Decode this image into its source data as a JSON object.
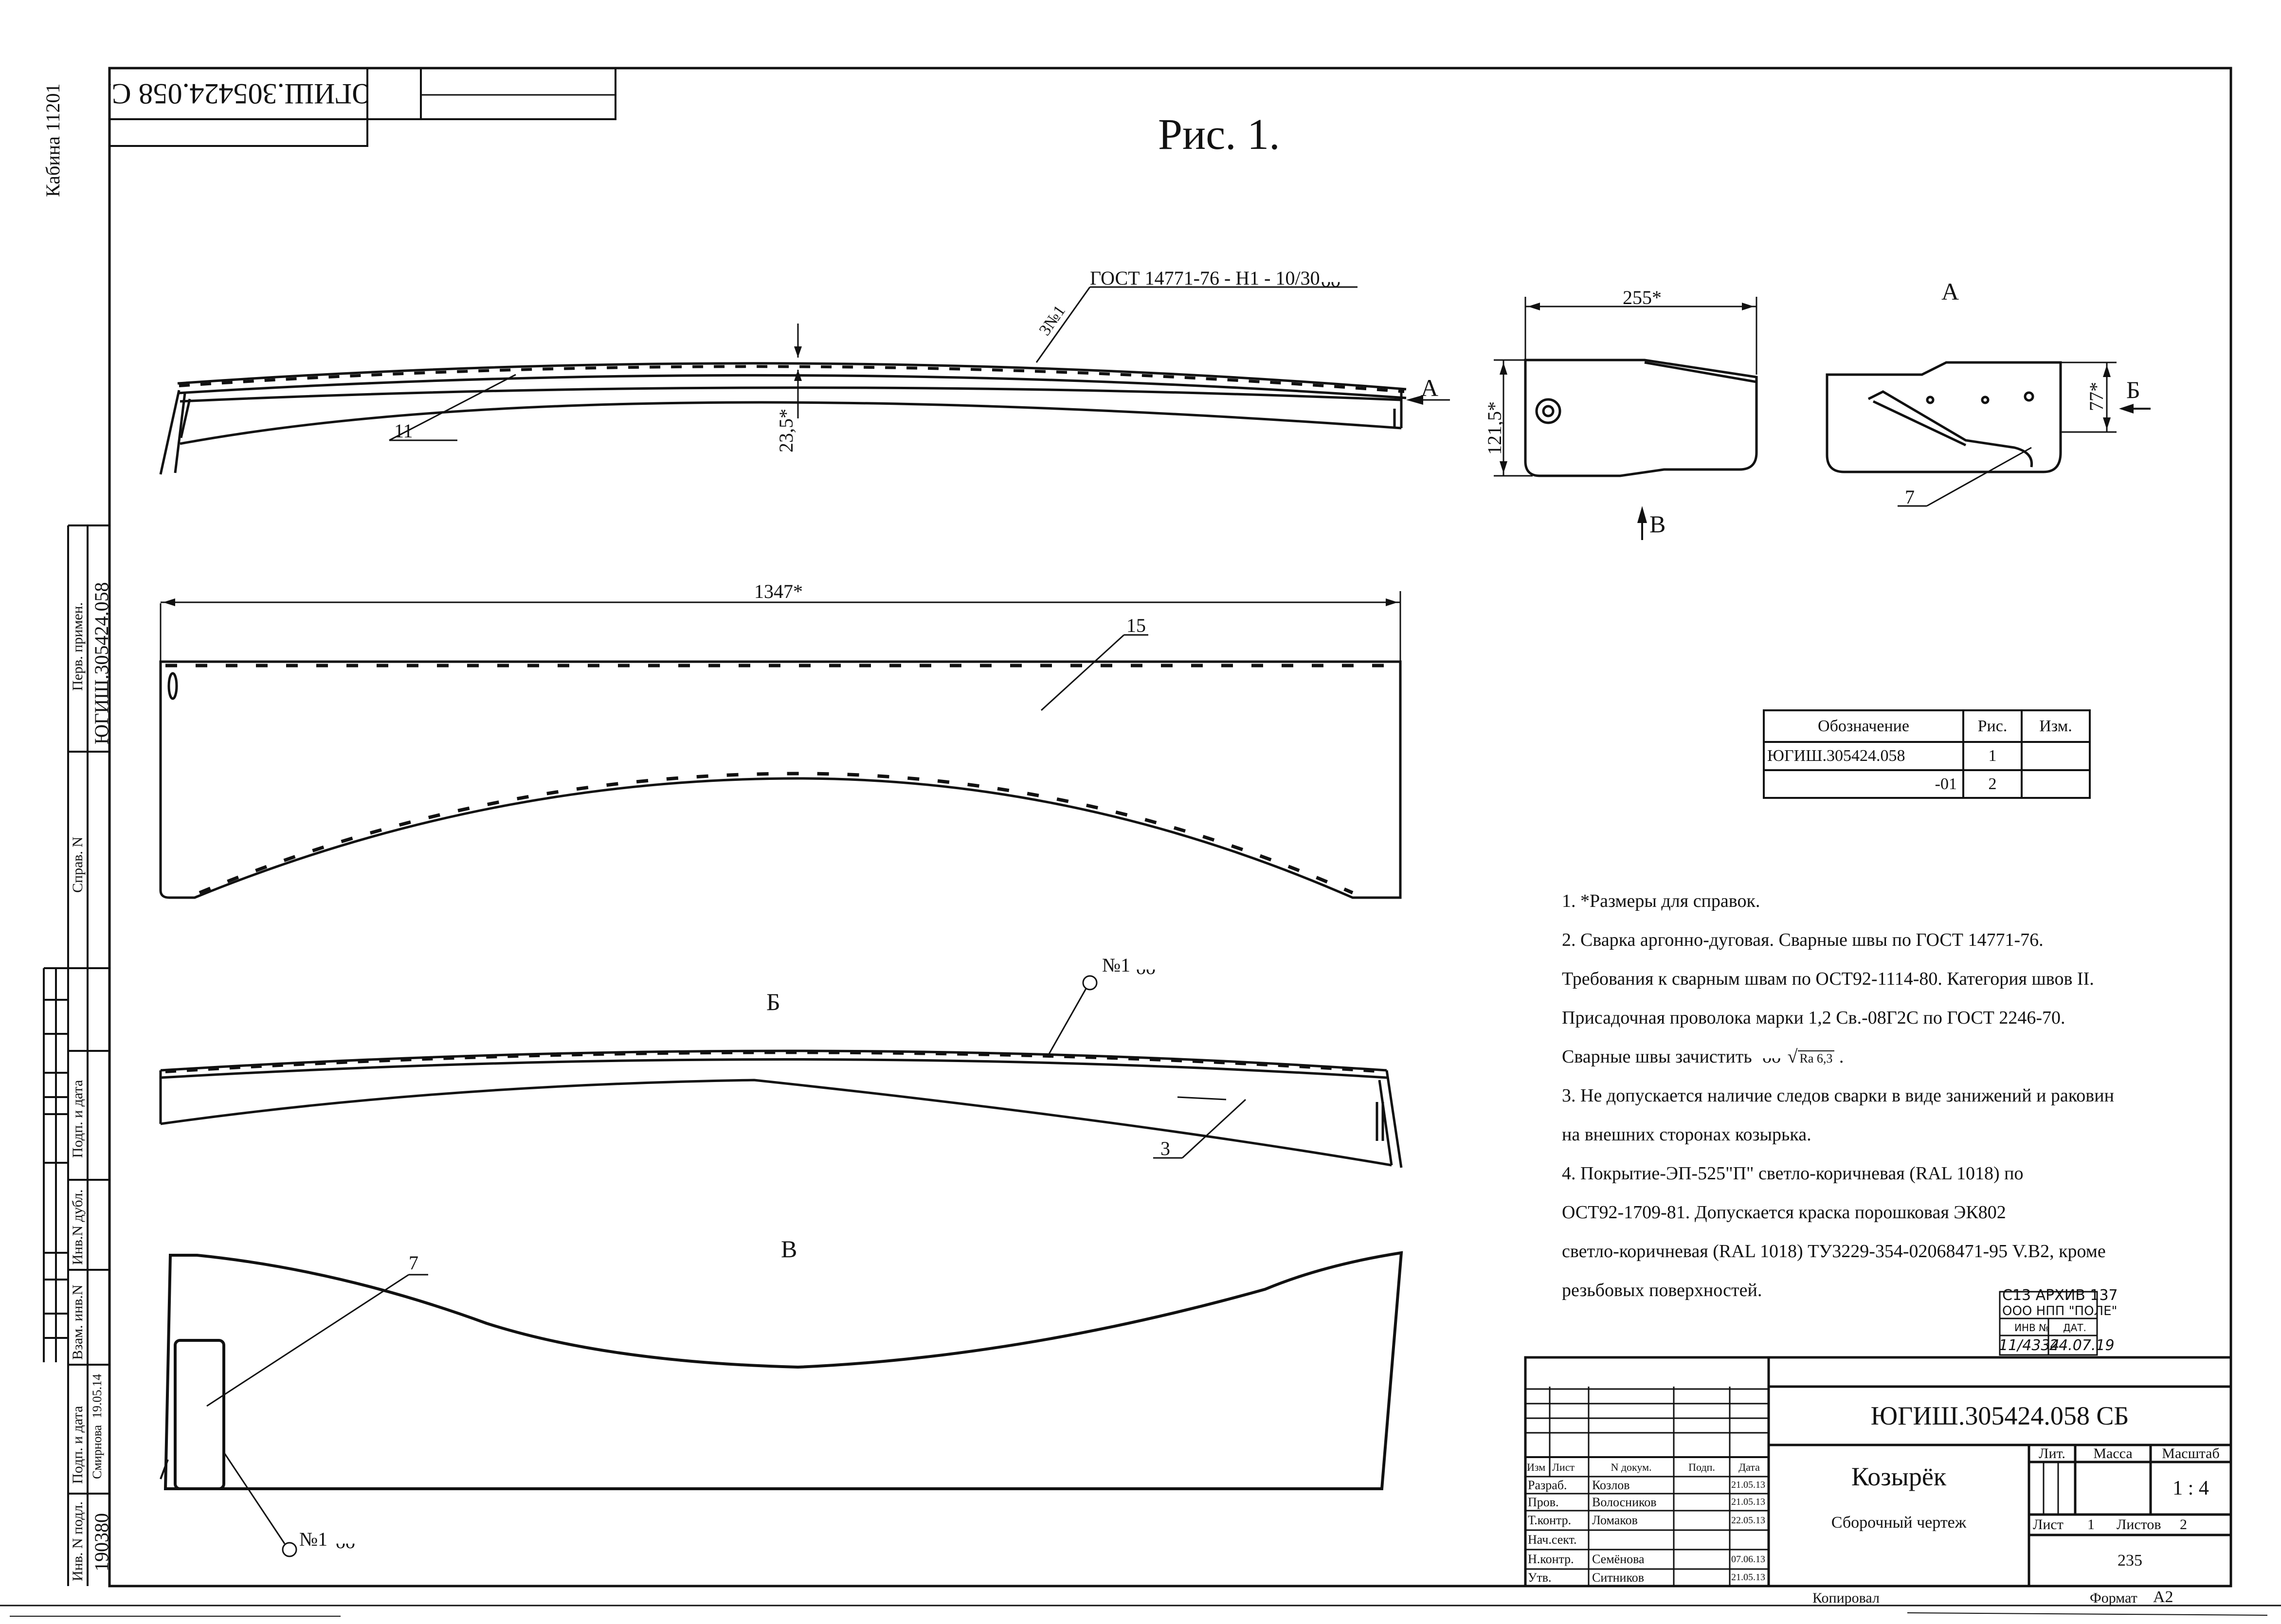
{
  "top_stamp": {
    "code_inverted": "ЮГИШ.305424.058 СБ"
  },
  "side": {
    "cabin_label": "Кабина 11201",
    "perv_primen_label": "Перв. примен.",
    "perv_primen_value": "ЮГИШ.305424.058",
    "sprav_label": "Справ. N",
    "podp_data_label": "Подп. и дата",
    "inv_dubl_label": "Инв.N дубл.",
    "vzam_inv_label": "Взам. инв.N",
    "podp_data_label_2": "Подп. и дата",
    "podp_signer": "Смирнова",
    "podp_date": "19.05.14",
    "inv_podl_label": "Инв. N подл.",
    "inv_podl_value": "190380"
  },
  "drawing": {
    "figure_title": "Рис. 1.",
    "weld_callout_top": "ГОСТ 14771-76 - Н1 - 10/30",
    "weld_mark_top": "3№1",
    "dim_height_center": "23,5*",
    "dim_length": "1347*",
    "dim_width_side": "255*",
    "dim_height_side": "121,5*",
    "dim_height_view_a": "77*",
    "pos_11": "11",
    "pos_15": "15",
    "pos_3": "3",
    "pos_7_view_a": "7",
    "pos_7_view_v": "7",
    "weld_label_b": "№1",
    "weld_label_v": "№1",
    "arrow_a": "А",
    "arrow_b": "Б",
    "arrow_v": "В",
    "view_a_title": "А",
    "view_b_title": "Б",
    "view_v_title": "В"
  },
  "variants_table": {
    "headers": [
      "Обозначение",
      "Рис.",
      "Изм."
    ],
    "rows": [
      [
        "ЮГИШ.305424.058",
        "1",
        ""
      ],
      [
        "-01",
        "2",
        ""
      ]
    ]
  },
  "notes": [
    "1. *Размеры для справок.",
    "2. Сварка аргонно-дуговая. Сварные швы по ГОСТ 14771-76.",
    "Требования к сварным швам по ОСТ92-1114-80. Категория швов II.",
    "Присадочная проволока марки 1,2 Св.-08Г2С по ГОСТ 2246-70.",
    "Сварные швы зачистить",
    "3. Не допускается наличие следов сварки в виде занижений и раковин",
    "на внешних сторонах козырька.",
    "4. Покрытие-ЭП-525\"П\" светло-коричневая (RAL 1018) по",
    "ОСТ92-1709-81. Допускается краска порошковая ЭК802",
    "светло-коричневая (RAL 1018) ТУ3229-354-02068471-95 V.B2, кроме",
    "резьбовых поверхностей."
  ],
  "roughness": {
    "ra": "Ra 6,3",
    "tail": "."
  },
  "archive_stamp": {
    "line1": "С13 АРХИВ 137",
    "line2": "ООО НПП \"ПОЛЕ\"",
    "inv_label": "ИНВ №",
    "date_label": "ДАТ.",
    "inv_value": "11/4334",
    "date_value": "24.07.19"
  },
  "title_block": {
    "designation": "ЮГИШ.305424.058 СБ",
    "name": "Козырёк",
    "doc_type": "Сборочный чертеж",
    "header_cols": [
      "Изм",
      "Лист",
      "N докум.",
      "Подп.",
      "Дата"
    ],
    "roles": [
      {
        "role": "Разраб.",
        "name": "Козлов",
        "date": "21.05.13"
      },
      {
        "role": "Пров.",
        "name": "Волосников",
        "date": "21.05.13"
      },
      {
        "role": "Т.контр.",
        "name": "Ломаков",
        "date": "22.05.13"
      },
      {
        "role": "Нач.сект.",
        "name": "",
        "date": ""
      },
      {
        "role": "Н.контр.",
        "name": "Семёнова",
        "date": "07.06.13"
      },
      {
        "role": "Утв.",
        "name": "Ситников",
        "date": "21.05.13"
      }
    ],
    "lit_label": "Лит.",
    "mass_label": "Масса",
    "scale_label": "Масштаб",
    "scale_value": "1 : 4",
    "sheet_label": "Лист",
    "sheet_value": "1",
    "sheets_label": "Листов",
    "sheets_value": "2",
    "org_code": "235",
    "copied_label": "Копировал",
    "format_label": "Формат",
    "format_value": "А2"
  }
}
